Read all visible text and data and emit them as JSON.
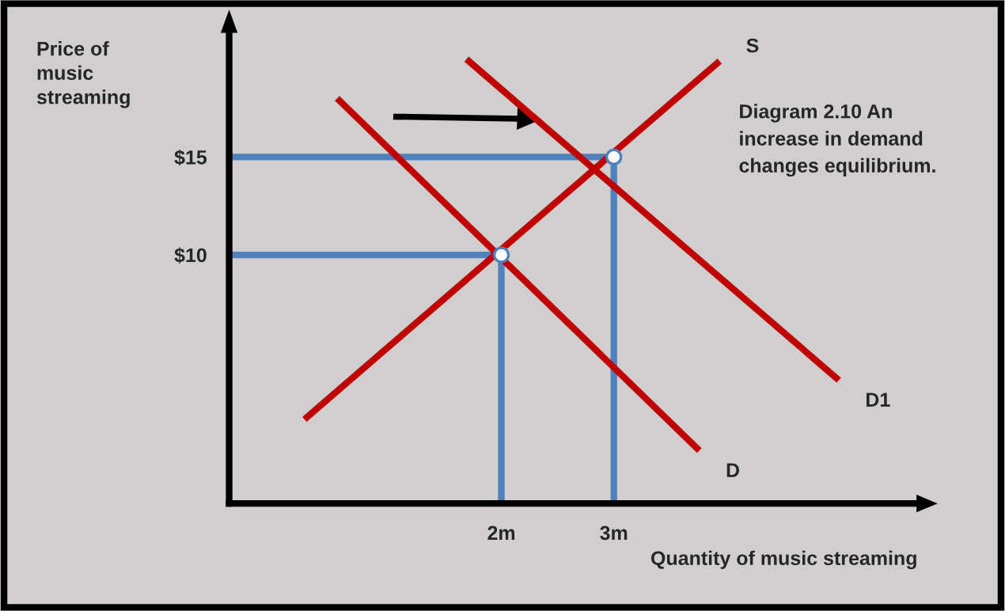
{
  "chart_data": {
    "type": "line",
    "xlabel": "Quantity of music streaming",
    "ylabel": "Price of music streaming",
    "xlim": [
      -0.42,
      5.7
    ],
    "ylim": [
      -2.7,
      21.4
    ],
    "xticks": [
      {
        "value": 2,
        "label": "2m"
      },
      {
        "value": 3,
        "label": "3m"
      }
    ],
    "yticks": [
      {
        "value": 10,
        "label": "$10"
      },
      {
        "value": 15,
        "label": "$15"
      }
    ],
    "series": [
      {
        "name": "S",
        "color": "#c00000",
        "x": [
          0.25,
          3.94
        ],
        "values": [
          1.6,
          19.9
        ]
      },
      {
        "name": "D",
        "color": "#c00000",
        "x": [
          0.54,
          3.76
        ],
        "values": [
          18.0,
          0.0
        ]
      },
      {
        "name": "D1",
        "color": "#c00000",
        "x": [
          1.69,
          5.0
        ],
        "values": [
          20.0,
          3.6
        ]
      },
      {
        "color": "#4f81bd",
        "x": [
          -0.42,
          3,
          3
        ],
        "values": [
          15,
          15,
          -2.7
        ]
      },
      {
        "color": "#4f81bd",
        "x": [
          -0.42,
          2,
          2
        ],
        "values": [
          10,
          10,
          -2.7
        ]
      },
      {
        "type": "scatter",
        "color": "#ffffff",
        "marker": "circle",
        "x": [
          2,
          3
        ],
        "values": [
          10,
          15
        ]
      }
    ],
    "annotations": [
      "Diagram 2.10 An increase in demand changes equilibrium."
    ],
    "line_style": "solid"
  }
}
